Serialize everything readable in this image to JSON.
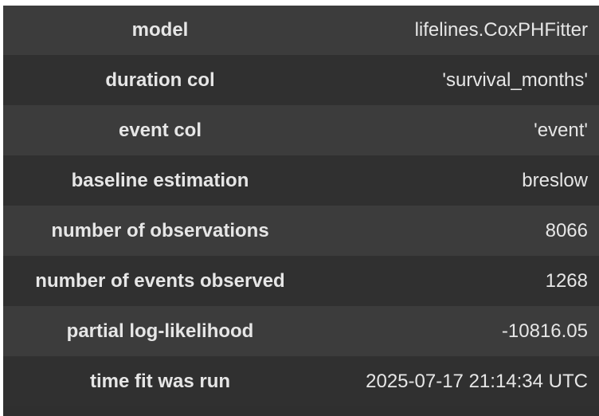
{
  "summary": {
    "rows": [
      {
        "key": "model",
        "value": "lifelines.CoxPHFitter"
      },
      {
        "key": "duration col",
        "value": "'survival_months'"
      },
      {
        "key": "event col",
        "value": "'event'"
      },
      {
        "key": "baseline estimation",
        "value": "breslow"
      },
      {
        "key": "number of observations",
        "value": "8066"
      },
      {
        "key": "number of events observed",
        "value": "1268"
      },
      {
        "key": "partial log-likelihood",
        "value": "-10816.05"
      },
      {
        "key": "time fit was run",
        "value": "2025-07-17 21:14:34 UTC"
      }
    ]
  }
}
